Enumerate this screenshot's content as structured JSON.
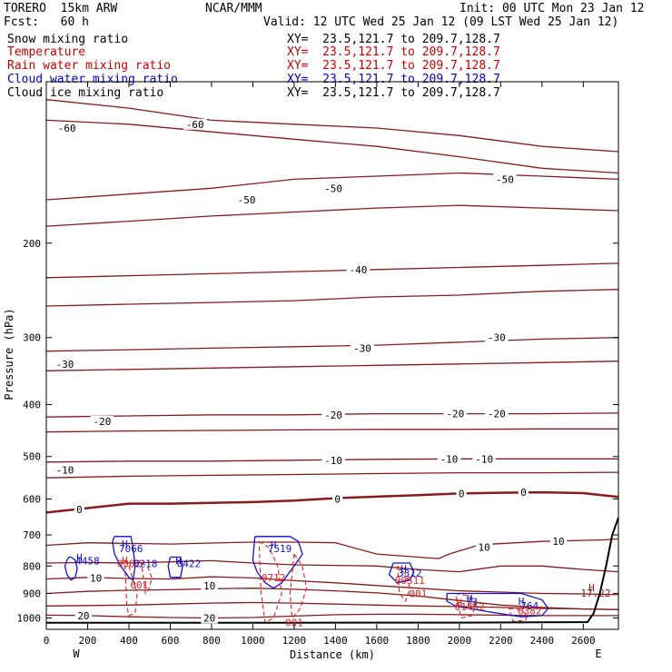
{
  "header": {
    "model": "TORERO  15km ARW",
    "center": "NCAR/MMM",
    "init": "Init: 00 UTC Mon 23 Jan 12",
    "fcst": "Fcst:   60 h",
    "valid": "Valid: 12 UTC Wed 25 Jan 12 (09 LST Wed 25 Jan 12)"
  },
  "legend": [
    {
      "label": "Snow mixing ratio",
      "xy": "",
      "color": "#000000"
    },
    {
      "label": "Temperature",
      "xy": "XY=  23.5,121.7 to 209.7,128.7",
      "color": "#c80000"
    },
    {
      "label": "Rain water mixing ratio",
      "xy": "XY=  23.5,121.7 to 209.7,128.7",
      "color": "#c80000"
    },
    {
      "label": "Cloud water mixing ratio",
      "xy": "XY=  23.5,121.7 to 209.7,128.7",
      "color": "#0000c8"
    },
    {
      "label": "Cloud ice mixing ratio",
      "xy": "XY=  23.5,121.7 to 209.7,128.7",
      "color": "#000000"
    }
  ],
  "snow_xy": "XY=  23.5,121.7 to 209.7,128.7",
  "colors": {
    "temperature": "#8b1a1a",
    "rain": "#e02020",
    "cloud_water": "#1010d0",
    "terrain": "#000000"
  },
  "chart_data": {
    "type": "line",
    "title": "",
    "xlabel": "Distance (km)",
    "ylabel": "Pressure (hPa)",
    "xlim": [
      0,
      2770
    ],
    "ylim": [
      1050,
      100
    ],
    "y_scale": "log",
    "x_ticks": [
      0,
      200,
      400,
      600,
      800,
      1000,
      1200,
      1400,
      1600,
      1800,
      2000,
      2200,
      2400,
      2600
    ],
    "y_ticks": [
      200,
      300,
      400,
      500,
      600,
      700,
      800,
      900,
      1000
    ],
    "x_ends": {
      "left": "W",
      "right": "E"
    },
    "temperature_isotherms": [
      {
        "value": -60,
        "x": [
          0,
          400,
          800,
          1200,
          1600,
          2000,
          2400,
          2770
        ],
        "y": [
          108,
          112,
          118,
          120,
          122,
          126,
          132,
          135
        ]
      },
      {
        "value": -60,
        "x": [
          0,
          400,
          800,
          1200,
          1600,
          2000,
          2400,
          2770
        ],
        "y": [
          118,
          120,
          124,
          128,
          132,
          138,
          145,
          148
        ]
      },
      {
        "value": -50,
        "x": [
          0,
          400,
          800,
          1200,
          1600,
          2000,
          2400,
          2770
        ],
        "y": [
          166,
          162,
          158,
          152,
          150,
          148,
          150,
          152
        ]
      },
      {
        "value": -50,
        "x": [
          0,
          400,
          800,
          1200,
          1600,
          2000,
          2400,
          2770
        ],
        "y": [
          186,
          182,
          178,
          175,
          172,
          170,
          172,
          174
        ]
      },
      {
        "value": -40,
        "x": [
          0,
          400,
          800,
          1200,
          1600,
          2000,
          2400,
          2770
        ],
        "y": [
          232,
          230,
          228,
          226,
          224,
          222,
          220,
          218
        ]
      },
      {
        "value": -40,
        "x": [
          0,
          400,
          800,
          1200,
          1600,
          2000,
          2400,
          2770
        ],
        "y": [
          262,
          260,
          258,
          256,
          252,
          250,
          246,
          244
        ]
      },
      {
        "value": -30,
        "x": [
          0,
          400,
          800,
          1200,
          1600,
          2000,
          2400,
          2770
        ],
        "y": [
          318,
          316,
          314,
          312,
          310,
          306,
          302,
          300
        ]
      },
      {
        "value": -30,
        "x": [
          0,
          400,
          800,
          1200,
          1600,
          2000,
          2400,
          2770
        ],
        "y": [
          346,
          344,
          342,
          340,
          338,
          336,
          334,
          332
        ]
      },
      {
        "value": -20,
        "x": [
          0,
          400,
          800,
          1200,
          1600,
          2000,
          2400,
          2770
        ],
        "y": [
          422,
          420,
          418,
          418,
          416,
          416,
          416,
          415
        ]
      },
      {
        "value": -20,
        "x": [
          0,
          400,
          800,
          1200,
          1600,
          2000,
          2400,
          2770
        ],
        "y": [
          450,
          448,
          447,
          446,
          445,
          445,
          444,
          444
        ]
      },
      {
        "value": -10,
        "x": [
          0,
          400,
          800,
          1200,
          1600,
          2000,
          2400,
          2770
        ],
        "y": [
          512,
          510,
          510,
          508,
          506,
          505,
          505,
          505
        ]
      },
      {
        "value": -10,
        "x": [
          0,
          400,
          800,
          1200,
          1600,
          2000,
          2400,
          2770
        ],
        "y": [
          548,
          544,
          542,
          540,
          538,
          536,
          536,
          535
        ]
      },
      {
        "value": 0,
        "x": [
          0,
          200,
          400,
          600,
          800,
          1000,
          1200,
          1400,
          1600,
          1800,
          2000,
          2200,
          2400,
          2600,
          2770
        ],
        "y": [
          636,
          624,
          612,
          612,
          610,
          608,
          604,
          598,
          594,
          590,
          586,
          584,
          583,
          585,
          595
        ]
      },
      {
        "value": 10,
        "x": [
          0,
          200,
          400,
          600,
          800,
          1000,
          1200,
          1400,
          1600,
          1800,
          1900,
          1950,
          2100,
          2400,
          2700,
          2770
        ],
        "y": [
          732,
          724,
          726,
          728,
          725,
          722,
          722,
          724,
          760,
          770,
          775,
          760,
          730,
          720,
          715,
          712
        ]
      },
      {
        "value": 10,
        "x": [
          0,
          200,
          400,
          600,
          800,
          1000,
          1200,
          1400,
          1600,
          1800,
          2000,
          2200,
          2400,
          2600,
          2770
        ],
        "y": [
          790,
          788,
          790,
          786,
          782,
          790,
          796,
          798,
          800,
          812,
          820,
          800,
          800,
          812,
          820
        ]
      },
      {
        "value": 10,
        "x": [
          0,
          200,
          400,
          600,
          800,
          1000,
          1200,
          1400,
          1600,
          1800,
          2000,
          2200,
          2400,
          2600,
          2770
        ],
        "y": [
          846,
          840,
          844,
          846,
          838,
          842,
          852,
          860,
          870,
          880,
          890,
          895,
          900,
          902,
          905
        ]
      },
      {
        "value": 10,
        "x": [
          0,
          200,
          400,
          600,
          800,
          1000,
          1200,
          1400,
          1600,
          1800,
          2000,
          2200,
          2400,
          2600,
          2770
        ],
        "y": [
          900,
          892,
          888,
          886,
          882,
          880,
          884,
          890,
          898,
          910,
          928,
          946,
          956,
          962,
          965
        ]
      },
      {
        "value": 20,
        "x": [
          0,
          200,
          400,
          600,
          800,
          1000,
          1200,
          1400,
          1600,
          1800,
          2000,
          2200,
          2400,
          2600,
          2770
        ],
        "y": [
          988,
          990,
          995,
          998,
          1000,
          998,
          992,
          986,
          984,
          984,
          986,
          988,
          990,
          990,
          990
        ]
      },
      {
        "value": 20,
        "x": [
          0,
          200,
          400,
          600,
          800,
          1000,
          1200,
          1400,
          1600,
          1800,
          2000,
          2200,
          2400,
          2600,
          2770
        ],
        "y": [
          950,
          948,
          946,
          942,
          938,
          936,
          938,
          942,
          946,
          950,
          952,
          956,
          960,
          962,
          964
        ]
      }
    ],
    "temperature_labels": [
      {
        "text": "-60",
        "x": 100,
        "y": 122
      },
      {
        "text": "-60",
        "x": 720,
        "y": 120
      },
      {
        "text": "-50",
        "x": 970,
        "y": 166
      },
      {
        "text": "-50",
        "x": 1390,
        "y": 158
      },
      {
        "text": "-50",
        "x": 2220,
        "y": 152
      },
      {
        "text": "-40",
        "x": 1510,
        "y": 224
      },
      {
        "text": "-30",
        "x": 90,
        "y": 336
      },
      {
        "text": "-30",
        "x": 1530,
        "y": 314
      },
      {
        "text": "-30",
        "x": 2180,
        "y": 300
      },
      {
        "text": "-20",
        "x": 270,
        "y": 430
      },
      {
        "text": "-20",
        "x": 1390,
        "y": 418
      },
      {
        "text": "-20",
        "x": 1980,
        "y": 416
      },
      {
        "text": "-20",
        "x": 2180,
        "y": 416
      },
      {
        "text": "-10",
        "x": 90,
        "y": 530
      },
      {
        "text": "-10",
        "x": 1390,
        "y": 508
      },
      {
        "text": "-10",
        "x": 1950,
        "y": 505
      },
      {
        "text": "-10",
        "x": 2120,
        "y": 505
      },
      {
        "text": "0",
        "x": 160,
        "y": 628
      },
      {
        "text": "0",
        "x": 1410,
        "y": 600
      },
      {
        "text": "0",
        "x": 2010,
        "y": 586
      },
      {
        "text": "0",
        "x": 2310,
        "y": 583
      },
      {
        "text": "10",
        "x": 2120,
        "y": 738
      },
      {
        "text": "10",
        "x": 2480,
        "y": 720
      },
      {
        "text": "10",
        "x": 240,
        "y": 842
      },
      {
        "text": "10",
        "x": 790,
        "y": 870
      },
      {
        "text": "20",
        "x": 180,
        "y": 990
      },
      {
        "text": "20",
        "x": 790,
        "y": 1000
      }
    ],
    "cloud_water": [
      {
        "max_label": "4458",
        "x": [
          120,
          140,
          150,
          140,
          120,
          100,
          90,
          100,
          110,
          120
        ],
        "y": [
          770,
          780,
          810,
          840,
          850,
          830,
          800,
          780,
          770,
          770
        ]
      },
      {
        "max_label": "7066",
        "x": [
          330,
          410,
          420,
          430,
          420,
          400,
          360,
          330,
          320,
          330
        ],
        "y": [
          705,
          705,
          740,
          800,
          850,
          840,
          800,
          760,
          720,
          705
        ]
      },
      {
        "max_label": "0422",
        "x": [
          600,
          650,
          660,
          650,
          600,
          590,
          600
        ],
        "y": [
          770,
          770,
          800,
          840,
          840,
          800,
          770
        ]
      },
      {
        "max_label": "7519",
        "x": [
          1010,
          1180,
          1220,
          1240,
          1200,
          1140,
          1100,
          1060,
          1020,
          1000,
          1010
        ],
        "y": [
          705,
          705,
          720,
          760,
          800,
          860,
          880,
          860,
          820,
          780,
          705
        ]
      },
      {
        "max_label": "3312",
        "x": [
          1680,
          1760,
          1780,
          1760,
          1700,
          1660,
          1680
        ],
        "y": [
          790,
          790,
          820,
          850,
          860,
          830,
          790
        ]
      },
      {
        "max_label": "764",
        "x": [
          1940,
          2300,
          2400,
          2430,
          2400,
          2300,
          2150,
          1980,
          1940,
          1940
        ],
        "y": [
          900,
          900,
          925,
          960,
          990,
          995,
          975,
          950,
          930,
          900
        ]
      }
    ],
    "rain_water": [
      {
        "label": "001",
        "x": [
          380,
          400,
          420,
          440,
          430,
          400,
          390,
          380
        ],
        "y": [
          780,
          800,
          850,
          900,
          980,
          990,
          950,
          780
        ]
      },
      {
        "label": "0218",
        "x": [
          460,
          490,
          510,
          500,
          480,
          460
        ],
        "y": [
          790,
          800,
          840,
          880,
          900,
          790
        ]
      },
      {
        "label": "0712",
        "x": [
          1030,
          1080,
          1120,
          1140,
          1100,
          1060,
          1040,
          1030
        ],
        "y": [
          720,
          740,
          800,
          900,
          1000,
          1020,
          900,
          720
        ]
      },
      {
        "label": "001",
        "x": [
          1200,
          1240,
          1260,
          1230,
          1190,
          1180,
          1200
        ],
        "y": [
          760,
          800,
          880,
          960,
          1000,
          900,
          760
        ]
      },
      {
        "label": "00511",
        "x": [
          1700,
          1740,
          1760,
          1740,
          1710,
          1700
        ],
        "y": [
          800,
          830,
          880,
          930,
          900,
          800
        ]
      },
      {
        "label": "01452",
        "x": [
          1980,
          2050,
          2080,
          2060,
          2010,
          1980
        ],
        "y": [
          900,
          910,
          940,
          990,
          1000,
          900
        ]
      },
      {
        "label": "0382",
        "x": [
          2240,
          2300,
          2330,
          2320,
          2260,
          2240
        ],
        "y": [
          960,
          965,
          990,
          1010,
          1015,
          960
        ]
      }
    ],
    "highs": [
      {
        "text": "H",
        "x": 160,
        "y": 772,
        "color": "cloud_water"
      },
      {
        "text": "H",
        "x": 380,
        "y": 728,
        "color": "cloud_water"
      },
      {
        "text": "H",
        "x": 380,
        "y": 780,
        "color": "rain"
      },
      {
        "text": "H",
        "x": 640,
        "y": 780,
        "color": "cloud_water"
      },
      {
        "text": "H",
        "x": 1100,
        "y": 730,
        "color": "cloud_water"
      },
      {
        "text": "H",
        "x": 1730,
        "y": 810,
        "color": "cloud_water"
      },
      {
        "text": "H",
        "x": 2050,
        "y": 920,
        "color": "cloud_water"
      },
      {
        "text": "H",
        "x": 2000,
        "y": 935,
        "color": "rain"
      },
      {
        "text": "H",
        "x": 2300,
        "y": 930,
        "color": "cloud_water"
      },
      {
        "text": "H",
        "x": 2640,
        "y": 878,
        "color": "temperature"
      }
    ],
    "field_labels": [
      {
        "text": "4458",
        "x": 200,
        "y": 782,
        "color": "cloud_water"
      },
      {
        "text": "7066",
        "x": 410,
        "y": 742,
        "color": "cloud_water"
      },
      {
        "text": "0382",
        "x": 400,
        "y": 792,
        "color": "rain"
      },
      {
        "text": "0218",
        "x": 480,
        "y": 792,
        "color": "cloud_water"
      },
      {
        "text": "0422",
        "x": 690,
        "y": 792,
        "color": "cloud_water"
      },
      {
        "text": "7519",
        "x": 1130,
        "y": 742,
        "color": "cloud_water"
      },
      {
        "text": "0712",
        "x": 1100,
        "y": 840,
        "color": "rain"
      },
      {
        "text": "3312",
        "x": 1760,
        "y": 824,
        "color": "cloud_water"
      },
      {
        "text": "00511",
        "x": 1760,
        "y": 850,
        "color": "rain"
      },
      {
        "text": "001",
        "x": 450,
        "y": 868,
        "color": "rain"
      },
      {
        "text": "001",
        "x": 1800,
        "y": 900,
        "color": "rain"
      },
      {
        "text": "73",
        "x": 2060,
        "y": 932,
        "color": "cloud_water"
      },
      {
        "text": "01452",
        "x": 2050,
        "y": 952,
        "color": "rain"
      },
      {
        "text": "764",
        "x": 2340,
        "y": 948,
        "color": "cloud_water"
      },
      {
        "text": "0382",
        "x": 2340,
        "y": 970,
        "color": "rain"
      },
      {
        "text": "001",
        "x": 1200,
        "y": 1020,
        "color": "rain"
      },
      {
        "text": "17.22",
        "x": 2660,
        "y": 898,
        "color": "temperature"
      }
    ],
    "terrain": {
      "x": [
        0,
        400,
        800,
        1200,
        1600,
        2000,
        2400,
        2620,
        2650,
        2680,
        2710,
        2740,
        2770
      ],
      "y": [
        1021,
        1021,
        1021,
        1021,
        1020,
        1020,
        1019,
        1018,
        980,
        900,
        800,
        700,
        650
      ]
    }
  }
}
